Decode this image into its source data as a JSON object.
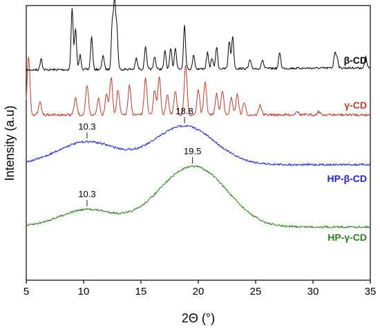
{
  "chart_data": {
    "type": "line",
    "title": "",
    "xlabel": "2Θ (°)",
    "ylabel": "Intensity (a.u)",
    "xlim": [
      5,
      35
    ],
    "x_ticks": [
      5,
      10,
      15,
      20,
      25,
      30,
      35
    ],
    "y_ticks_shown": false,
    "grid": false,
    "legend": "none",
    "series": [
      {
        "name": "β-CD",
        "color": "#000000",
        "peaks": [
          {
            "x": 6.3,
            "h": 0.16
          },
          {
            "x": 9.0,
            "h": 0.85
          },
          {
            "x": 9.3,
            "h": 0.55
          },
          {
            "x": 9.7,
            "h": 0.2
          },
          {
            "x": 10.7,
            "h": 0.45
          },
          {
            "x": 11.7,
            "h": 0.2
          },
          {
            "x": 12.5,
            "h": 0.62
          },
          {
            "x": 12.7,
            "h": 0.9
          },
          {
            "x": 12.9,
            "h": 0.55
          },
          {
            "x": 14.6,
            "h": 0.15
          },
          {
            "x": 15.4,
            "h": 0.32
          },
          {
            "x": 16.2,
            "h": 0.18
          },
          {
            "x": 17.1,
            "h": 0.25
          },
          {
            "x": 17.6,
            "h": 0.28
          },
          {
            "x": 18.0,
            "h": 0.3
          },
          {
            "x": 18.8,
            "h": 0.6
          },
          {
            "x": 19.6,
            "h": 0.2
          },
          {
            "x": 20.8,
            "h": 0.22
          },
          {
            "x": 21.2,
            "h": 0.15
          },
          {
            "x": 21.6,
            "h": 0.3
          },
          {
            "x": 22.7,
            "h": 0.38
          },
          {
            "x": 23.0,
            "h": 0.45
          },
          {
            "x": 24.5,
            "h": 0.12
          },
          {
            "x": 25.6,
            "h": 0.12
          },
          {
            "x": 27.1,
            "h": 0.22
          },
          {
            "x": 31.9,
            "h": 0.2
          },
          {
            "x": 32.1,
            "h": 0.15
          },
          {
            "x": 34.6,
            "h": 0.15
          }
        ]
      },
      {
        "name": "γ-CD",
        "color": "#c0392b",
        "peaks": [
          {
            "x": 5.2,
            "h": 0.7
          },
          {
            "x": 6.2,
            "h": 0.15
          },
          {
            "x": 9.3,
            "h": 0.2
          },
          {
            "x": 10.3,
            "h": 0.35
          },
          {
            "x": 11.3,
            "h": 0.2
          },
          {
            "x": 12.0,
            "h": 0.25
          },
          {
            "x": 12.4,
            "h": 0.45
          },
          {
            "x": 13.0,
            "h": 0.3
          },
          {
            "x": 14.0,
            "h": 0.35
          },
          {
            "x": 15.4,
            "h": 0.45
          },
          {
            "x": 16.2,
            "h": 0.3
          },
          {
            "x": 16.6,
            "h": 0.45
          },
          {
            "x": 17.3,
            "h": 0.25
          },
          {
            "x": 18.0,
            "h": 0.28
          },
          {
            "x": 18.9,
            "h": 0.6
          },
          {
            "x": 20.0,
            "h": 0.3
          },
          {
            "x": 20.6,
            "h": 0.4
          },
          {
            "x": 21.6,
            "h": 0.25
          },
          {
            "x": 22.1,
            "h": 0.3
          },
          {
            "x": 22.9,
            "h": 0.2
          },
          {
            "x": 23.4,
            "h": 0.25
          },
          {
            "x": 24.0,
            "h": 0.15
          },
          {
            "x": 25.4,
            "h": 0.12
          },
          {
            "x": 28.6,
            "h": 0.05
          },
          {
            "x": 30.5,
            "h": 0.04
          }
        ]
      },
      {
        "name": "HP-β-CD",
        "color": "#2020d8",
        "peaks": [
          {
            "x": 10.3,
            "h": 0.33
          },
          {
            "x": 18.8,
            "h": 0.56
          }
        ]
      },
      {
        "name": "HP-γ-CD",
        "color": "#2e7d1e",
        "peaks": [
          {
            "x": 10.3,
            "h": 0.25
          },
          {
            "x": 17.5,
            "h": 0.32
          },
          {
            "x": 19.5,
            "h": 0.38
          },
          {
            "x": 21.3,
            "h": 0.36
          }
        ]
      }
    ],
    "annotations": [
      {
        "text": "10.3",
        "series": "HP-β-CD",
        "x": 10.3
      },
      {
        "text": "18.8",
        "series": "HP-β-CD",
        "x": 18.8
      },
      {
        "text": "10.3",
        "series": "HP-γ-CD",
        "x": 10.3
      },
      {
        "text": "19.5",
        "series": "HP-γ-CD",
        "x": 19.5
      }
    ]
  }
}
